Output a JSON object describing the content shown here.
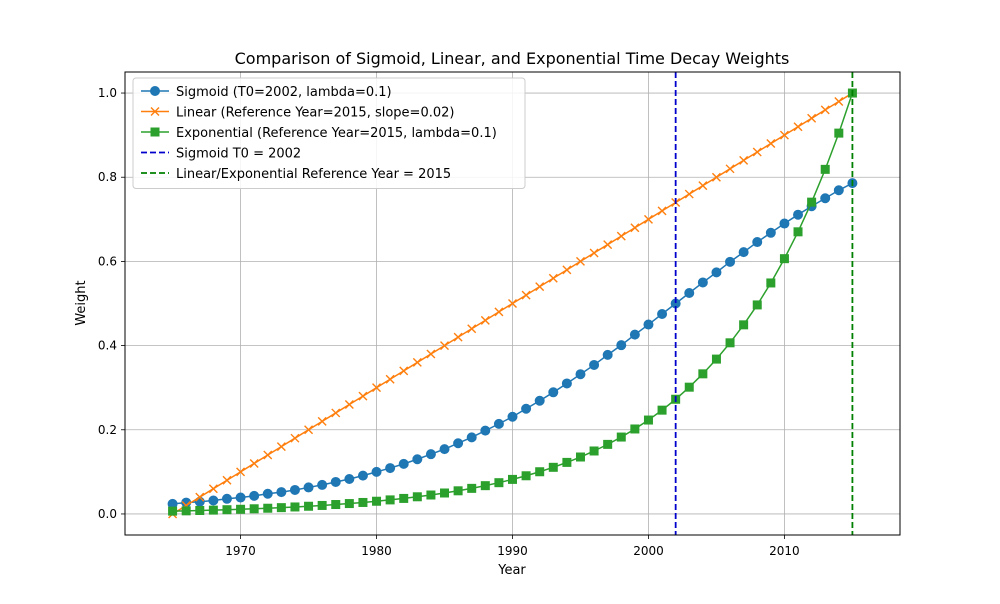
{
  "chart_data": {
    "type": "line",
    "title": "Comparison of Sigmoid, Linear, and Exponential Time Decay Weights",
    "xlabel": "Year",
    "ylabel": "Weight",
    "xlim": [
      1961.5,
      2018.5
    ],
    "ylim": [
      -0.05,
      1.05
    ],
    "xticks": [
      1970,
      1980,
      1990,
      2000,
      2010
    ],
    "yticks": [
      0.0,
      0.2,
      0.4,
      0.6,
      0.8,
      1.0
    ],
    "xtick_labels": [
      "1970",
      "1980",
      "1990",
      "2000",
      "2010"
    ],
    "ytick_labels": [
      "0.0",
      "0.2",
      "0.4",
      "0.6",
      "0.8",
      "1.0"
    ],
    "grid": true,
    "legend_position": "upper-left",
    "x": [
      1965,
      1966,
      1967,
      1968,
      1969,
      1970,
      1971,
      1972,
      1973,
      1974,
      1975,
      1976,
      1977,
      1978,
      1979,
      1980,
      1981,
      1982,
      1983,
      1984,
      1985,
      1986,
      1987,
      1988,
      1989,
      1990,
      1991,
      1992,
      1993,
      1994,
      1995,
      1996,
      1997,
      1998,
      1999,
      2000,
      2001,
      2002,
      2003,
      2004,
      2005,
      2006,
      2007,
      2008,
      2009,
      2010,
      2011,
      2012,
      2013,
      2014,
      2015
    ],
    "series": [
      {
        "name": "Sigmoid (T0=2002, lambda=0.1)",
        "color": "#1f77b4",
        "marker": "circle",
        "values": [
          0.024,
          0.027,
          0.029,
          0.032,
          0.036,
          0.039,
          0.043,
          0.048,
          0.052,
          0.057,
          0.063,
          0.069,
          0.076,
          0.083,
          0.091,
          0.1,
          0.109,
          0.119,
          0.13,
          0.142,
          0.154,
          0.168,
          0.182,
          0.198,
          0.214,
          0.231,
          0.25,
          0.269,
          0.289,
          0.31,
          0.332,
          0.354,
          0.378,
          0.401,
          0.426,
          0.45,
          0.475,
          0.5,
          0.525,
          0.55,
          0.574,
          0.599,
          0.622,
          0.646,
          0.668,
          0.69,
          0.711,
          0.731,
          0.75,
          0.769,
          0.786
        ]
      },
      {
        "name": "Linear (Reference Year=2015, slope=0.02)",
        "color": "#ff7f0e",
        "marker": "x",
        "values": [
          0.0,
          0.02,
          0.04,
          0.06,
          0.08,
          0.1,
          0.12,
          0.14,
          0.16,
          0.18,
          0.2,
          0.22,
          0.24,
          0.26,
          0.28,
          0.3,
          0.32,
          0.34,
          0.36,
          0.38,
          0.4,
          0.42,
          0.44,
          0.46,
          0.48,
          0.5,
          0.52,
          0.54,
          0.56,
          0.58,
          0.6,
          0.62,
          0.64,
          0.66,
          0.68,
          0.7,
          0.72,
          0.74,
          0.76,
          0.78,
          0.8,
          0.82,
          0.84,
          0.86,
          0.88,
          0.9,
          0.92,
          0.94,
          0.96,
          0.98,
          1.0
        ]
      },
      {
        "name": "Exponential (Reference Year=2015, lambda=0.1)",
        "color": "#2ca02c",
        "marker": "square",
        "values": [
          0.0067,
          0.0074,
          0.0082,
          0.0091,
          0.0101,
          0.0111,
          0.0123,
          0.0136,
          0.015,
          0.0166,
          0.0183,
          0.0202,
          0.0224,
          0.0247,
          0.0273,
          0.0302,
          0.0334,
          0.0369,
          0.0408,
          0.045,
          0.0498,
          0.055,
          0.0608,
          0.0672,
          0.0743,
          0.0821,
          0.0907,
          0.1003,
          0.1108,
          0.1225,
          0.1353,
          0.1496,
          0.1653,
          0.1827,
          0.2019,
          0.2231,
          0.2466,
          0.2725,
          0.3012,
          0.3329,
          0.3679,
          0.4066,
          0.4493,
          0.4966,
          0.5488,
          0.6065,
          0.6703,
          0.7408,
          0.8187,
          0.9048,
          1.0
        ]
      }
    ],
    "vlines": [
      {
        "name": "Sigmoid T0 = 2002",
        "x": 2002,
        "color": "#0000cc"
      },
      {
        "name": "Linear/Exponential Reference Year = 2015",
        "x": 2015,
        "color": "#008000"
      }
    ]
  }
}
